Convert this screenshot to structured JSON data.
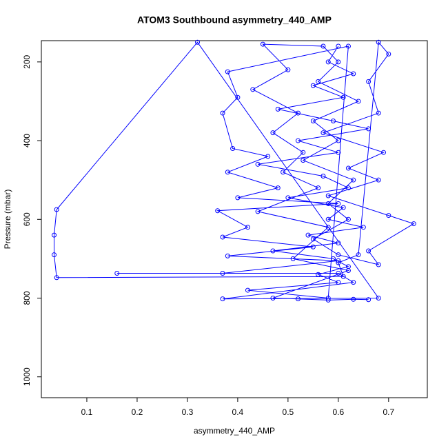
{
  "chart_data": {
    "type": "line",
    "title": "ATOM3 Southbound asymmetry_440_AMP",
    "x_label": "asymmetry_440_AMP",
    "y_label": "Pressure (mbar)",
    "color": "#0000ff",
    "marker": "circle",
    "xlim": [
      0.0096,
      0.777
    ],
    "ylim": [
      1053,
      146
    ],
    "xticks": [
      0.1,
      0.2,
      0.3,
      0.4,
      0.5,
      0.6,
      0.7
    ],
    "yticks": [
      200,
      400,
      600,
      800,
      1000
    ],
    "x": [
      0.6,
      0.58,
      0.63,
      0.55,
      0.61,
      0.48,
      0.59,
      0.66,
      0.52,
      0.6,
      0.44,
      0.57,
      0.62,
      0.5,
      0.61,
      0.58,
      0.65,
      0.54,
      0.6,
      0.47,
      0.59,
      0.62,
      0.56,
      0.6,
      0.42,
      0.58,
      0.62,
      0.38,
      0.4,
      0.37,
      0.39,
      0.46,
      0.38,
      0.48,
      0.4,
      0.6,
      0.36,
      0.42,
      0.37,
      0.55,
      0.38,
      0.6,
      0.37,
      0.16,
      0.6,
      0.63,
      0.37,
      0.68,
      0.32,
      0.04,
      0.035,
      0.035,
      0.04,
      0.61,
      0.6,
      0.64,
      0.68,
      0.7,
      0.66,
      0.68,
      0.57,
      0.69,
      0.62,
      0.68,
      0.58,
      0.7,
      0.75,
      0.66,
      0.68,
      0.6,
      0.55,
      0.62,
      0.58,
      0.63,
      0.53,
      0.6,
      0.55,
      0.64,
      0.56,
      0.6,
      0.57,
      0.45,
      0.5,
      0.43,
      0.52,
      0.47,
      0.53,
      0.49,
      0.56,
      0.44,
      0.58,
      0.51,
      0.62,
      0.47,
      0.52,
      0.58,
      0.63,
      0.66
    ],
    "values": [
      160,
      200,
      230,
      260,
      290,
      320,
      350,
      370,
      400,
      430,
      460,
      490,
      520,
      545,
      570,
      600,
      620,
      640,
      660,
      680,
      700,
      720,
      740,
      760,
      780,
      800,
      160,
      225,
      290,
      330,
      420,
      440,
      480,
      520,
      545,
      560,
      578,
      620,
      645,
      670,
      693,
      705,
      737,
      737,
      737,
      760,
      802,
      800,
      150,
      575,
      640,
      690,
      748,
      745,
      710,
      690,
      150,
      180,
      250,
      330,
      380,
      430,
      470,
      500,
      540,
      590,
      611,
      680,
      715,
      690,
      650,
      600,
      560,
      500,
      450,
      400,
      350,
      300,
      250,
      200,
      160,
      155,
      220,
      270,
      330,
      380,
      430,
      480,
      520,
      580,
      620,
      700,
      730,
      800,
      802,
      805,
      803,
      804
    ]
  }
}
